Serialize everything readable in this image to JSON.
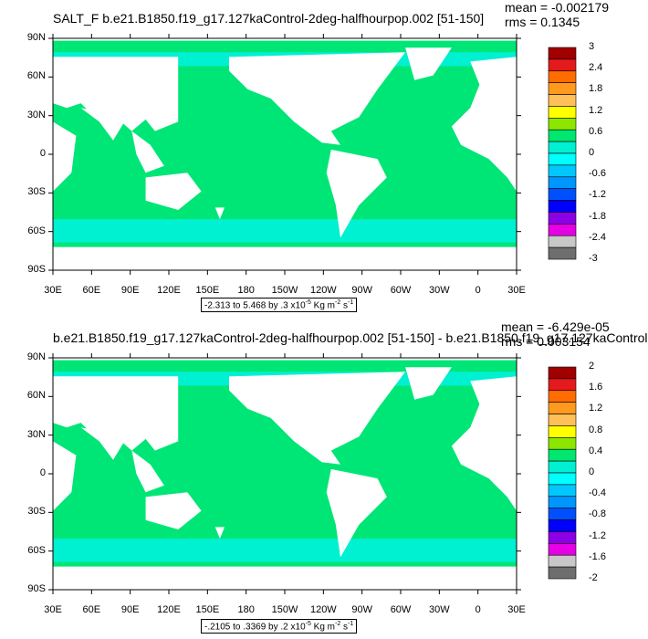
{
  "panels": [
    {
      "title": "SALT_F b.e21.B1850.f19_g17.127kaControl-2deg-halfhourpop.002 [51-150]",
      "mean": "mean = -0.002179",
      "rms": "rms = 0.1345",
      "range_prefix": "-2.313 to 5.468 by .3 x10",
      "range_exp": "-5",
      "range_units": "Kg m",
      "range_units_exp1": "-2",
      "range_units_mid": "s",
      "range_units_exp2": "-1",
      "colorbar_labels": [
        "3",
        "2.4",
        "1.8",
        "1.2",
        "0.6",
        "0",
        "-0.6",
        "-1.2",
        "-1.8",
        "-2.4",
        "-3"
      ]
    },
    {
      "title": "b.e21.B1850.f19_g17.127kaControl-2deg-halfhourpop.002 [51-150] - b.e21.B1850.f19_g17.127kaControl",
      "mean": "mean = -6.429e-05",
      "rms": "rms = 0.003154",
      "range_prefix": "-.2105 to .3369 by .2 x10",
      "range_exp": "-5",
      "range_units": "Kg m",
      "range_units_exp1": "-2",
      "range_units_mid": "s",
      "range_units_exp2": "-1",
      "colorbar_labels": [
        "2",
        "1.6",
        "1.2",
        "0.8",
        "0.4",
        "0",
        "-0.4",
        "-0.8",
        "-1.2",
        "-1.6",
        "-2"
      ]
    }
  ],
  "lat_labels": [
    "90N",
    "60N",
    "30N",
    "0",
    "30S",
    "60S",
    "90S"
  ],
  "lon_labels": [
    "30E",
    "60E",
    "90E",
    "120E",
    "150E",
    "180",
    "150W",
    "120W",
    "90W",
    "60W",
    "30W",
    "0",
    "30E"
  ],
  "colorbar_colors": [
    "#a00000",
    "#e41a1c",
    "#ff6d00",
    "#ff9a1e",
    "#ffc05a",
    "#ffff00",
    "#8ce600",
    "#00e66e",
    "#00f0d2",
    "#00ffff",
    "#00c8ff",
    "#0096ff",
    "#0050ff",
    "#0000ff",
    "#8c00e6",
    "#e600e6",
    "#c8c8c8",
    "#6e6e6e"
  ],
  "map_colors": {
    "ocean": "#00e676",
    "land": "#ffffff",
    "band": "#00f0d2"
  }
}
